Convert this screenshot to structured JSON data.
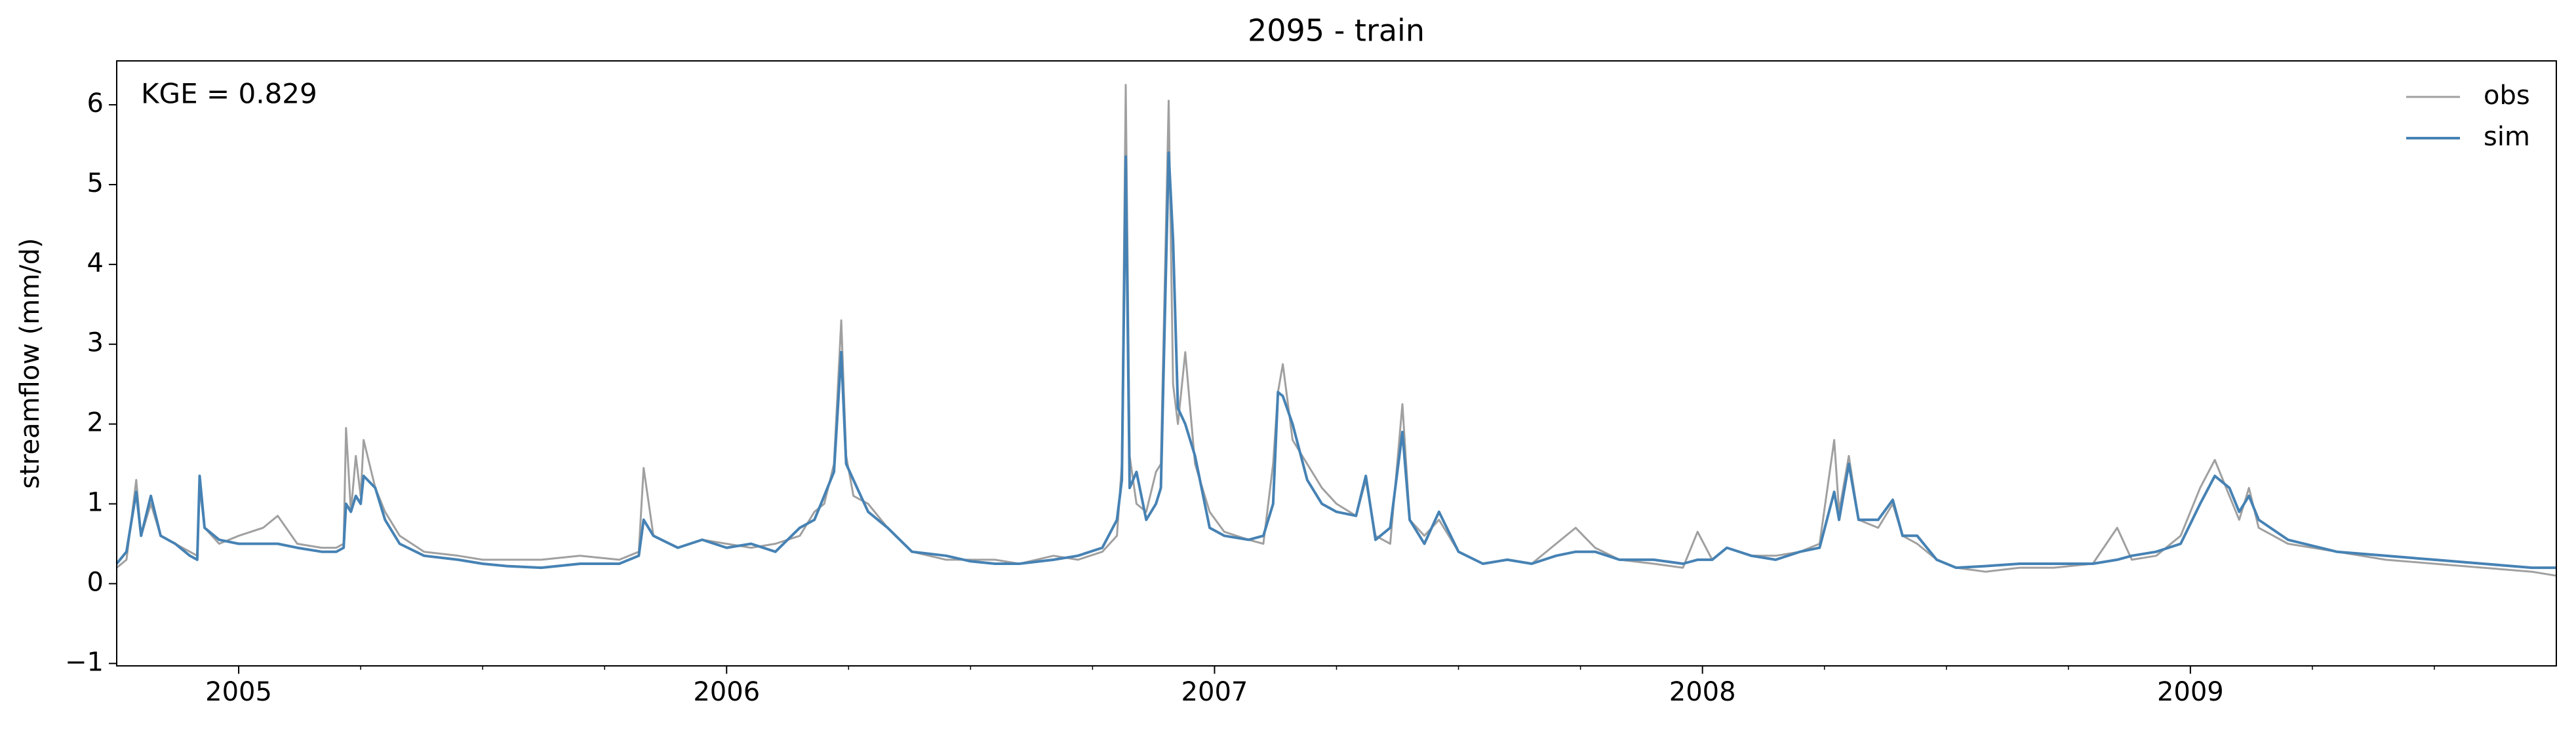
{
  "chart_data": {
    "type": "line",
    "title": "2095 - train",
    "ylabel": "streamflow (mm/d)",
    "annotation": "KGE = 0.829",
    "xlim": [
      2004.75,
      2009.75
    ],
    "xticks": [
      2005,
      2006,
      2007,
      2008,
      2009
    ],
    "xminorticks": [
      2005.25,
      2005.5,
      2005.75,
      2006.25,
      2006.5,
      2006.75,
      2007.25,
      2007.5,
      2007.75,
      2008.25,
      2008.5,
      2008.75,
      2009.25,
      2009.5
    ],
    "ylim": [
      -1.03,
      6.55
    ],
    "yticks": [
      {
        "value": -1,
        "label": "−1"
      },
      0,
      1,
      2,
      3,
      4,
      5,
      6
    ],
    "legend": "upper right",
    "x": [
      2004.75,
      2004.77,
      2004.79,
      2004.8,
      2004.82,
      2004.84,
      2004.87,
      2004.9,
      2004.915,
      2004.92,
      2004.93,
      2004.96,
      2005.0,
      2005.05,
      2005.08,
      2005.12,
      2005.17,
      2005.2,
      2005.215,
      2005.22,
      2005.23,
      2005.24,
      2005.25,
      2005.256,
      2005.28,
      2005.3,
      2005.33,
      2005.38,
      2005.45,
      2005.5,
      2005.55,
      2005.62,
      2005.7,
      2005.78,
      2005.82,
      2005.83,
      2005.85,
      2005.9,
      2005.95,
      2006.0,
      2006.05,
      2006.1,
      2006.15,
      2006.18,
      2006.2,
      2006.22,
      2006.235,
      2006.245,
      2006.26,
      2006.29,
      2006.33,
      2006.38,
      2006.45,
      2006.5,
      2006.55,
      2006.6,
      2006.67,
      2006.72,
      2006.77,
      2006.8,
      2006.81,
      2006.818,
      2006.826,
      2006.84,
      2006.86,
      2006.88,
      2006.89,
      2006.906,
      2006.915,
      2006.925,
      2006.94,
      2006.96,
      2006.99,
      2007.02,
      2007.07,
      2007.1,
      2007.12,
      2007.13,
      2007.14,
      2007.16,
      2007.19,
      2007.22,
      2007.25,
      2007.29,
      2007.31,
      2007.33,
      2007.36,
      2007.385,
      2007.4,
      2007.43,
      2007.46,
      2007.5,
      2007.55,
      2007.6,
      2007.65,
      2007.7,
      2007.74,
      2007.78,
      2007.83,
      2007.9,
      2007.96,
      2007.99,
      2008.02,
      2008.05,
      2008.1,
      2008.15,
      2008.2,
      2008.24,
      2008.27,
      2008.28,
      2008.3,
      2008.32,
      2008.36,
      2008.39,
      2008.41,
      2008.44,
      2008.48,
      2008.52,
      2008.58,
      2008.65,
      2008.72,
      2008.8,
      2008.85,
      2008.88,
      2008.93,
      2008.98,
      2009.02,
      2009.05,
      2009.08,
      2009.1,
      2009.12,
      2009.14,
      2009.2,
      2009.3,
      2009.4,
      2009.5,
      2009.6,
      2009.7,
      2009.75
    ],
    "series": [
      {
        "name": "obs",
        "color": "#a0a0a0",
        "values": [
          0.2,
          0.3,
          1.3,
          0.6,
          1.0,
          0.6,
          0.5,
          0.4,
          0.35,
          1.2,
          0.7,
          0.5,
          0.6,
          0.7,
          0.85,
          0.5,
          0.45,
          0.45,
          0.5,
          1.95,
          0.9,
          1.6,
          1.1,
          1.8,
          1.2,
          0.9,
          0.6,
          0.4,
          0.35,
          0.3,
          0.3,
          0.3,
          0.35,
          0.3,
          0.4,
          1.45,
          0.6,
          0.45,
          0.55,
          0.5,
          0.45,
          0.5,
          0.6,
          0.9,
          1.0,
          1.5,
          3.3,
          1.6,
          1.1,
          1.0,
          0.7,
          0.4,
          0.3,
          0.3,
          0.3,
          0.25,
          0.35,
          0.3,
          0.4,
          0.6,
          1.5,
          6.25,
          1.6,
          1.0,
          0.9,
          1.4,
          1.5,
          6.05,
          2.5,
          2.0,
          2.9,
          1.5,
          0.9,
          0.65,
          0.55,
          0.5,
          1.5,
          2.4,
          2.75,
          1.8,
          1.5,
          1.2,
          1.0,
          0.85,
          1.3,
          0.6,
          0.5,
          2.25,
          0.8,
          0.6,
          0.8,
          0.4,
          0.25,
          0.3,
          0.25,
          0.5,
          0.7,
          0.45,
          0.3,
          0.25,
          0.2,
          0.65,
          0.3,
          0.45,
          0.35,
          0.35,
          0.4,
          0.5,
          1.8,
          0.9,
          1.6,
          0.8,
          0.7,
          1.0,
          0.6,
          0.5,
          0.3,
          0.2,
          0.15,
          0.2,
          0.2,
          0.25,
          0.7,
          0.3,
          0.35,
          0.6,
          1.2,
          1.55,
          1.1,
          0.8,
          1.2,
          0.7,
          0.5,
          0.4,
          0.3,
          0.25,
          0.2,
          0.15,
          0.1
        ]
      },
      {
        "name": "sim",
        "color": "#4682b4",
        "values": [
          0.25,
          0.4,
          1.15,
          0.6,
          1.1,
          0.6,
          0.5,
          0.35,
          0.3,
          1.35,
          0.7,
          0.55,
          0.5,
          0.5,
          0.5,
          0.45,
          0.4,
          0.4,
          0.45,
          1.0,
          0.9,
          1.1,
          1.0,
          1.35,
          1.2,
          0.8,
          0.5,
          0.35,
          0.3,
          0.25,
          0.22,
          0.2,
          0.25,
          0.25,
          0.35,
          0.8,
          0.6,
          0.45,
          0.55,
          0.45,
          0.5,
          0.4,
          0.7,
          0.8,
          1.1,
          1.4,
          2.9,
          1.5,
          1.3,
          0.9,
          0.7,
          0.4,
          0.35,
          0.28,
          0.25,
          0.25,
          0.3,
          0.35,
          0.45,
          0.8,
          1.3,
          5.35,
          1.2,
          1.4,
          0.8,
          1.0,
          1.2,
          5.4,
          4.3,
          2.2,
          2.0,
          1.6,
          0.7,
          0.6,
          0.55,
          0.6,
          1.0,
          2.4,
          2.35,
          2.0,
          1.3,
          1.0,
          0.9,
          0.85,
          1.35,
          0.55,
          0.7,
          1.9,
          0.8,
          0.5,
          0.9,
          0.4,
          0.25,
          0.3,
          0.25,
          0.35,
          0.4,
          0.4,
          0.3,
          0.3,
          0.25,
          0.3,
          0.3,
          0.45,
          0.35,
          0.3,
          0.4,
          0.45,
          1.15,
          0.8,
          1.5,
          0.8,
          0.8,
          1.05,
          0.6,
          0.6,
          0.3,
          0.2,
          0.22,
          0.25,
          0.25,
          0.25,
          0.3,
          0.35,
          0.4,
          0.5,
          1.0,
          1.35,
          1.2,
          0.9,
          1.1,
          0.8,
          0.55,
          0.4,
          0.35,
          0.3,
          0.25,
          0.2,
          0.2
        ]
      }
    ]
  }
}
